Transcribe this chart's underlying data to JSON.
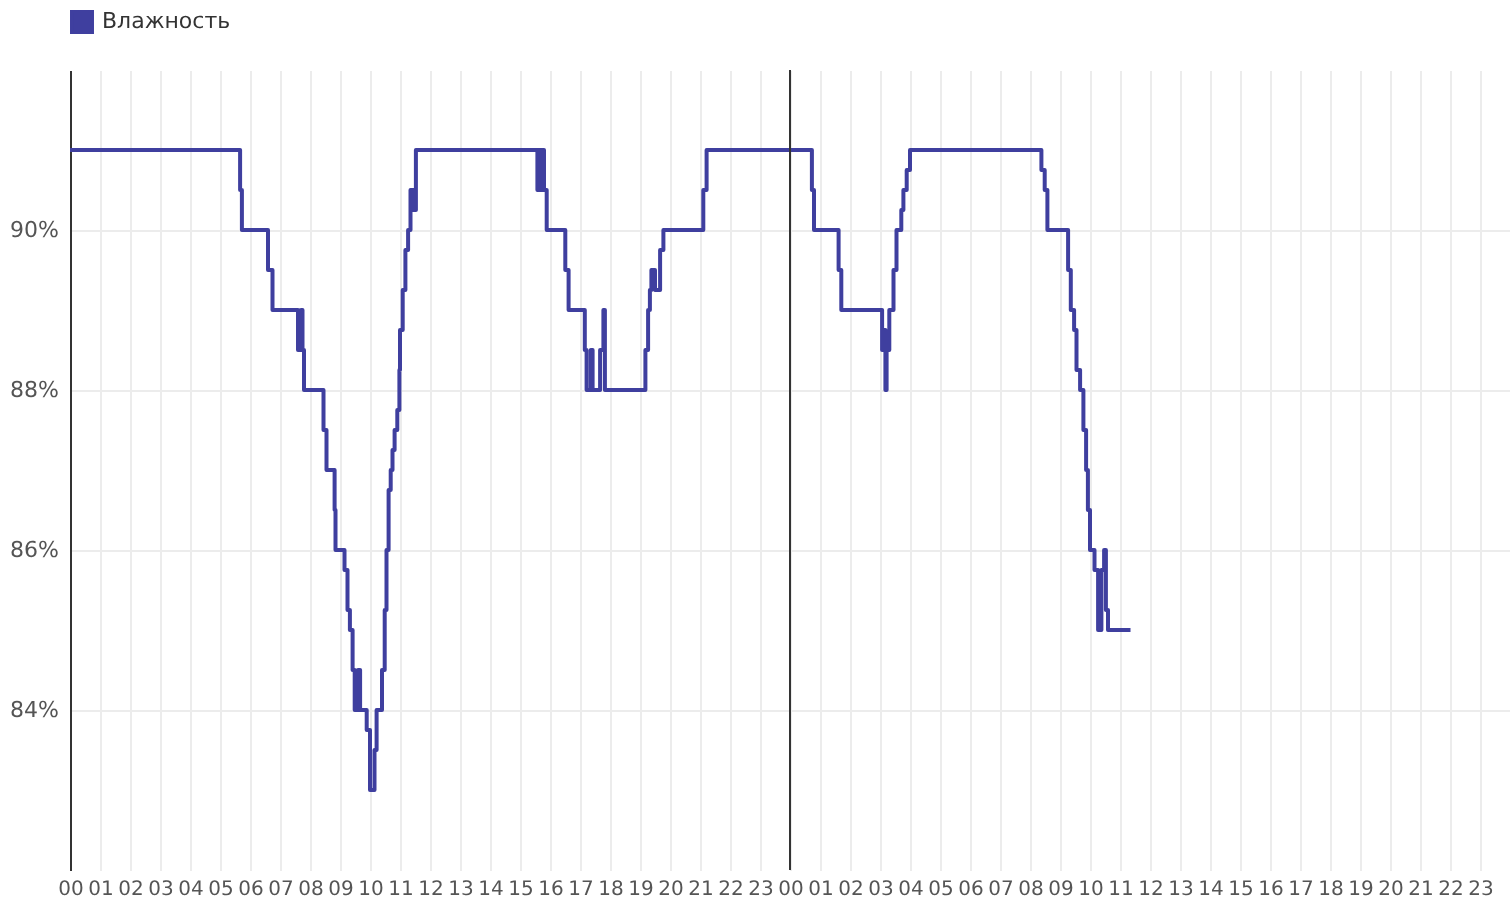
{
  "chart_data": {
    "type": "step",
    "xlim": [
      0,
      48
    ],
    "xticks": [
      {
        "value": 0,
        "label": "00"
      },
      {
        "value": 1,
        "label": "01"
      },
      {
        "value": 2,
        "label": "02"
      },
      {
        "value": 3,
        "label": "03"
      },
      {
        "value": 4,
        "label": "04"
      },
      {
        "value": 5,
        "label": "05"
      },
      {
        "value": 6,
        "label": "06"
      },
      {
        "value": 7,
        "label": "07"
      },
      {
        "value": 8,
        "label": "08"
      },
      {
        "value": 9,
        "label": "09"
      },
      {
        "value": 10,
        "label": "10"
      },
      {
        "value": 11,
        "label": "11"
      },
      {
        "value": 12,
        "label": "12"
      },
      {
        "value": 13,
        "label": "13"
      },
      {
        "value": 14,
        "label": "14"
      },
      {
        "value": 15,
        "label": "15"
      },
      {
        "value": 16,
        "label": "16"
      },
      {
        "value": 17,
        "label": "17"
      },
      {
        "value": 18,
        "label": "18"
      },
      {
        "value": 19,
        "label": "19"
      },
      {
        "value": 20,
        "label": "20"
      },
      {
        "value": 21,
        "label": "21"
      },
      {
        "value": 22,
        "label": "22"
      },
      {
        "value": 23,
        "label": "23"
      },
      {
        "value": 24,
        "label": "00"
      },
      {
        "value": 25,
        "label": "01"
      },
      {
        "value": 26,
        "label": "02"
      },
      {
        "value": 27,
        "label": "03"
      },
      {
        "value": 28,
        "label": "04"
      },
      {
        "value": 29,
        "label": "05"
      },
      {
        "value": 30,
        "label": "06"
      },
      {
        "value": 31,
        "label": "07"
      },
      {
        "value": 32,
        "label": "08"
      },
      {
        "value": 33,
        "label": "09"
      },
      {
        "value": 34,
        "label": "10"
      },
      {
        "value": 35,
        "label": "11"
      },
      {
        "value": 36,
        "label": "12"
      },
      {
        "value": 37,
        "label": "13"
      },
      {
        "value": 38,
        "label": "14"
      },
      {
        "value": 39,
        "label": "15"
      },
      {
        "value": 40,
        "label": "16"
      },
      {
        "value": 41,
        "label": "17"
      },
      {
        "value": 42,
        "label": "18"
      },
      {
        "value": 43,
        "label": "19"
      },
      {
        "value": 44,
        "label": "20"
      },
      {
        "value": 45,
        "label": "21"
      },
      {
        "value": 46,
        "label": "22"
      },
      {
        "value": 47,
        "label": "23"
      }
    ],
    "ylim": [
      82,
      92
    ],
    "yticks": [
      {
        "value": 84,
        "label": "84%"
      },
      {
        "value": 86,
        "label": "86%"
      },
      {
        "value": 88,
        "label": "88%"
      },
      {
        "value": 90,
        "label": "90%"
      }
    ],
    "grid": true,
    "legend": "top left",
    "ref_lines": [
      {
        "axis": "x",
        "value": 24,
        "color": "#333333"
      }
    ],
    "series": [
      {
        "name": "Влажность",
        "color": "#3f3f9f",
        "x": [
          0,
          5.67,
          5.73,
          6.6,
          6.75,
          7.6,
          7.7,
          7.75,
          7.8,
          8.45,
          8.55,
          8.82,
          8.85,
          9.15,
          9.25,
          9.33,
          9.42,
          9.49,
          9.6,
          9.67,
          9.89,
          10.0,
          10.15,
          10.22,
          10.4,
          10.49,
          10.55,
          10.62,
          10.69,
          10.75,
          10.82,
          10.91,
          10.98,
          11.0,
          11.09,
          11.18,
          11.27,
          11.35,
          11.45,
          11.53,
          15.58,
          15.62,
          15.7,
          15.75,
          15.8,
          15.85,
          15.89,
          16.51,
          16.62,
          17.16,
          17.22,
          17.36,
          17.42,
          17.67,
          17.78,
          17.83,
          19.18,
          19.27,
          19.33,
          19.38,
          19.5,
          19.67,
          19.78,
          21.11,
          21.22,
          24.73,
          24.8,
          25.62,
          25.71,
          27.07,
          27.11,
          27.18,
          27.22,
          27.31,
          27.45,
          27.55,
          27.71,
          27.78,
          27.89,
          28.0,
          32.38,
          32.49,
          32.58,
          33.27,
          33.36,
          33.47,
          33.55,
          33.67,
          33.78,
          33.87,
          33.93,
          34.0,
          34.15,
          34.27,
          34.38,
          34.47,
          34.53,
          34.6,
          35.35
        ],
        "values": [
          91,
          90.5,
          90,
          89.5,
          89,
          88.5,
          89,
          88.5,
          88,
          87.5,
          87,
          86.5,
          86,
          85.75,
          85.25,
          85,
          84.5,
          84,
          84.5,
          84,
          83.75,
          83,
          83.5,
          84,
          84.5,
          85.25,
          86,
          86.75,
          87,
          87.25,
          87.5,
          87.75,
          88.25,
          88.75,
          89.25,
          89.75,
          90,
          90.5,
          90.25,
          91,
          90.5,
          91,
          90.5,
          91,
          90.5,
          90.5,
          90,
          89.5,
          89,
          88.5,
          88,
          88.5,
          88,
          88.5,
          89,
          88,
          88.5,
          89,
          89.25,
          89.5,
          89.25,
          89.75,
          90,
          90.5,
          91,
          90.5,
          90,
          89.5,
          89,
          88.5,
          88.75,
          88,
          88.5,
          89,
          89.5,
          90,
          90.25,
          90.5,
          90.75,
          91,
          90.75,
          90.5,
          90,
          89.5,
          89,
          88.75,
          88.25,
          88,
          87.5,
          87,
          86.5,
          86,
          85.75,
          85,
          85.75,
          86,
          85.25,
          85,
          85
        ]
      }
    ]
  }
}
